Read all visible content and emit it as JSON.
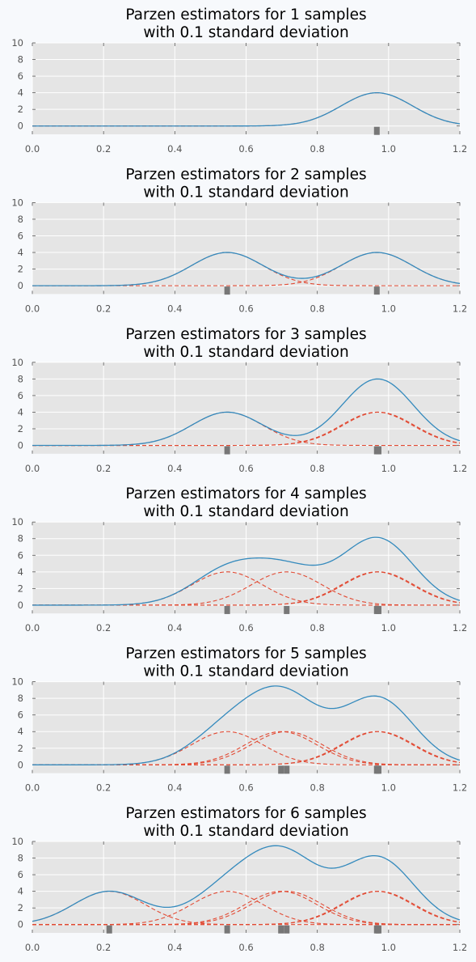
{
  "chart_data": [
    {
      "type": "line",
      "title": "Parzen estimators for 1 samples\nwith 0.1 standard deviation",
      "title_lines": [
        "Parzen estimators for 1 samples",
        "with 0.1 standard deviation"
      ],
      "xlim": [
        0.0,
        1.2
      ],
      "ylim": [
        -1,
        10
      ],
      "x_ticks": [
        0.0,
        0.2,
        0.4,
        0.6,
        0.8,
        1.0,
        1.2
      ],
      "x_tick_labels": [
        "0.0",
        "0.2",
        "0.4",
        "0.6",
        "0.8",
        "1.0",
        "1.2"
      ],
      "y_ticks": [
        0,
        2,
        4,
        6,
        8,
        10
      ],
      "y_tick_labels": [
        "0",
        "2",
        "4",
        "6",
        "8",
        "10"
      ],
      "grid": true,
      "samples": [
        0.967
      ],
      "std": 0.1,
      "series": [
        {
          "style": "solid",
          "color": "#348abd",
          "description": "sum of kernels"
        },
        {
          "style": "dashed",
          "color": "#e24a33",
          "description": "individual Gaussian kernels"
        }
      ]
    },
    {
      "type": "line",
      "title": "Parzen estimators for 2 samples\nwith 0.1 standard deviation",
      "title_lines": [
        "Parzen estimators for 2 samples",
        "with 0.1 standard deviation"
      ],
      "xlim": [
        0.0,
        1.2
      ],
      "ylim": [
        -1,
        10
      ],
      "x_ticks": [
        0.0,
        0.2,
        0.4,
        0.6,
        0.8,
        1.0,
        1.2
      ],
      "x_tick_labels": [
        "0.0",
        "0.2",
        "0.4",
        "0.6",
        "0.8",
        "1.0",
        "1.2"
      ],
      "y_ticks": [
        0,
        2,
        4,
        6,
        8,
        10
      ],
      "y_tick_labels": [
        "0",
        "2",
        "4",
        "6",
        "8",
        "10"
      ],
      "grid": true,
      "samples": [
        0.967,
        0.547
      ],
      "std": 0.1,
      "series": [
        {
          "style": "solid",
          "color": "#348abd",
          "description": "sum of kernels"
        },
        {
          "style": "dashed",
          "color": "#e24a33",
          "description": "individual Gaussian kernels"
        }
      ]
    },
    {
      "type": "line",
      "title": "Parzen estimators for 3 samples\nwith 0.1 standard deviation",
      "title_lines": [
        "Parzen estimators for 3 samples",
        "with 0.1 standard deviation"
      ],
      "xlim": [
        0.0,
        1.2
      ],
      "ylim": [
        -1,
        10
      ],
      "x_ticks": [
        0.0,
        0.2,
        0.4,
        0.6,
        0.8,
        1.0,
        1.2
      ],
      "x_tick_labels": [
        "0.0",
        "0.2",
        "0.4",
        "0.6",
        "0.8",
        "1.0",
        "1.2"
      ],
      "y_ticks": [
        0,
        2,
        4,
        6,
        8,
        10
      ],
      "y_tick_labels": [
        "0",
        "2",
        "4",
        "6",
        "8",
        "10"
      ],
      "grid": true,
      "samples": [
        0.967,
        0.547,
        0.972
      ],
      "std": 0.1,
      "series": [
        {
          "style": "solid",
          "color": "#348abd",
          "description": "sum of kernels"
        },
        {
          "style": "dashed",
          "color": "#e24a33",
          "description": "individual Gaussian kernels"
        }
      ]
    },
    {
      "type": "line",
      "title": "Parzen estimators for 4 samples\nwith 0.1 standard deviation",
      "title_lines": [
        "Parzen estimators for 4 samples",
        "with 0.1 standard deviation"
      ],
      "xlim": [
        0.0,
        1.2
      ],
      "ylim": [
        -1,
        10
      ],
      "x_ticks": [
        0.0,
        0.2,
        0.4,
        0.6,
        0.8,
        1.0,
        1.2
      ],
      "x_tick_labels": [
        "0.0",
        "0.2",
        "0.4",
        "0.6",
        "0.8",
        "1.0",
        "1.2"
      ],
      "y_ticks": [
        0,
        2,
        4,
        6,
        8,
        10
      ],
      "y_tick_labels": [
        "0",
        "2",
        "4",
        "6",
        "8",
        "10"
      ],
      "grid": true,
      "samples": [
        0.967,
        0.547,
        0.972,
        0.714
      ],
      "std": 0.1,
      "series": [
        {
          "style": "solid",
          "color": "#348abd",
          "description": "sum of kernels"
        },
        {
          "style": "dashed",
          "color": "#e24a33",
          "description": "individual Gaussian kernels"
        }
      ]
    },
    {
      "type": "line",
      "title": "Parzen estimators for 5 samples\nwith 0.1 standard deviation",
      "title_lines": [
        "Parzen estimators for 5 samples",
        "with 0.1 standard deviation"
      ],
      "xlim": [
        0.0,
        1.2
      ],
      "ylim": [
        -1,
        10
      ],
      "x_ticks": [
        0.0,
        0.2,
        0.4,
        0.6,
        0.8,
        1.0,
        1.2
      ],
      "x_tick_labels": [
        "0.0",
        "0.2",
        "0.4",
        "0.6",
        "0.8",
        "1.0",
        "1.2"
      ],
      "y_ticks": [
        0,
        2,
        4,
        6,
        8,
        10
      ],
      "y_tick_labels": [
        "0",
        "2",
        "4",
        "6",
        "8",
        "10"
      ],
      "grid": true,
      "samples": [
        0.967,
        0.547,
        0.972,
        0.714,
        0.698
      ],
      "std": 0.1,
      "series": [
        {
          "style": "solid",
          "color": "#348abd",
          "description": "sum of kernels"
        },
        {
          "style": "dashed",
          "color": "#e24a33",
          "description": "individual Gaussian kernels"
        }
      ]
    },
    {
      "type": "line",
      "title": "Parzen estimators for 6 samples\nwith 0.1 standard deviation",
      "title_lines": [
        "Parzen estimators for 6 samples",
        "with 0.1 standard deviation"
      ],
      "xlim": [
        0.0,
        1.2
      ],
      "ylim": [
        -1,
        10
      ],
      "x_ticks": [
        0.0,
        0.2,
        0.4,
        0.6,
        0.8,
        1.0,
        1.2
      ],
      "x_tick_labels": [
        "0.0",
        "0.2",
        "0.4",
        "0.6",
        "0.8",
        "1.0",
        "1.2"
      ],
      "y_ticks": [
        0,
        2,
        4,
        6,
        8,
        10
      ],
      "y_tick_labels": [
        "0",
        "2",
        "4",
        "6",
        "8",
        "10"
      ],
      "grid": true,
      "samples": [
        0.967,
        0.547,
        0.972,
        0.714,
        0.698,
        0.216
      ],
      "std": 0.1,
      "series": [
        {
          "style": "solid",
          "color": "#348abd",
          "description": "sum of kernels"
        },
        {
          "style": "dashed",
          "color": "#e24a33",
          "description": "individual Gaussian kernels"
        }
      ]
    }
  ],
  "colors": {
    "page_background": "#f7f9fc",
    "plot_background": "#e5e5e5",
    "grid": "#ffffff",
    "sum_line": "#348abd",
    "kernel_line": "#e24a33",
    "rug": "#777777"
  }
}
